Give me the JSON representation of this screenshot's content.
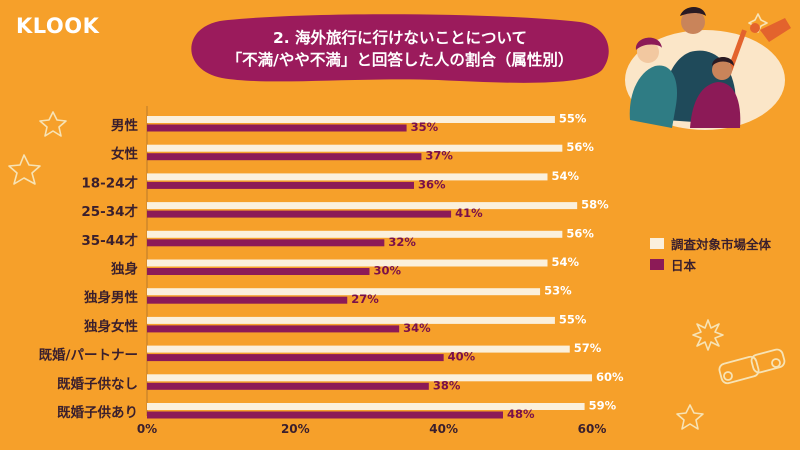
{
  "brand": {
    "logo": "KLOOK"
  },
  "colors": {
    "background": "#f6a02a",
    "series_all": "#fbf0dc",
    "series_jp": "#8c1a57",
    "title_blob": "#9b1b5c"
  },
  "chart_data": {
    "type": "bar",
    "orientation": "horizontal",
    "title": "2. 海外旅行に行けないことについて",
    "subtitle": "「不満/やや不満」と回答した人の割合（属性別）",
    "categories": [
      "男性",
      "女性",
      "18-24才",
      "25-34才",
      "35-44才",
      "独身",
      "独身男性",
      "独身女性",
      "既婚/パートナー",
      "既婚子供なし",
      "既婚子供あり"
    ],
    "series": [
      {
        "name": "調査対象市場全体",
        "values": [
          55,
          56,
          54,
          58,
          56,
          54,
          53,
          55,
          57,
          60,
          59
        ]
      },
      {
        "name": "日本",
        "values": [
          35,
          37,
          36,
          41,
          32,
          30,
          27,
          34,
          40,
          38,
          48
        ]
      }
    ],
    "value_suffix": "%",
    "xlim": [
      0,
      60
    ],
    "xticks": [
      "0%",
      "20%",
      "40%",
      "60%"
    ],
    "legend_position": "right"
  }
}
